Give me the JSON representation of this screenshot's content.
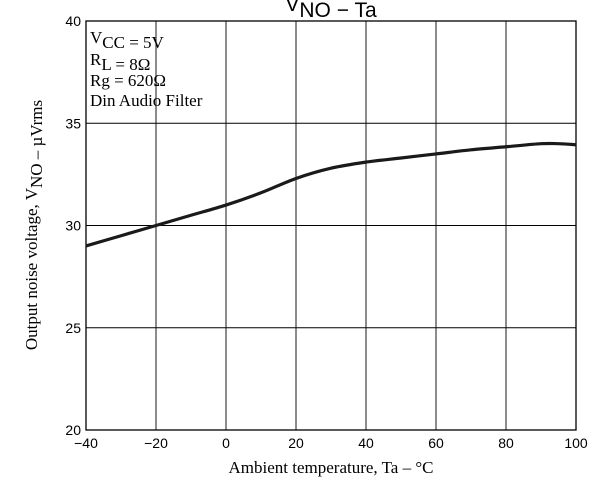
{
  "chart_data": {
    "type": "line",
    "title": "V_NO − Ta",
    "xlabel": "Ambient temperature, Ta – °C",
    "ylabel": "Output noise voltage, V_NO – µVrms",
    "xlim": [
      -40,
      100
    ],
    "ylim": [
      20,
      40
    ],
    "xticks": [
      -40,
      -20,
      0,
      20,
      40,
      60,
      80,
      100
    ],
    "yticks": [
      20,
      25,
      30,
      35,
      40
    ],
    "grid": true,
    "annotation": [
      "V_CC = 5V",
      "R_L = 8Ω",
      "Rg = 620Ω",
      "Din Audio Filter"
    ],
    "series": [
      {
        "x": [
          -40,
          -30,
          -20,
          -10,
          0,
          10,
          20,
          30,
          40,
          50,
          60,
          70,
          80,
          90,
          95,
          100
        ],
        "y": [
          29.0,
          29.5,
          30.0,
          30.5,
          31.0,
          31.6,
          32.3,
          32.8,
          33.1,
          33.3,
          33.5,
          33.7,
          33.85,
          34.0,
          34.0,
          33.95
        ]
      }
    ]
  }
}
